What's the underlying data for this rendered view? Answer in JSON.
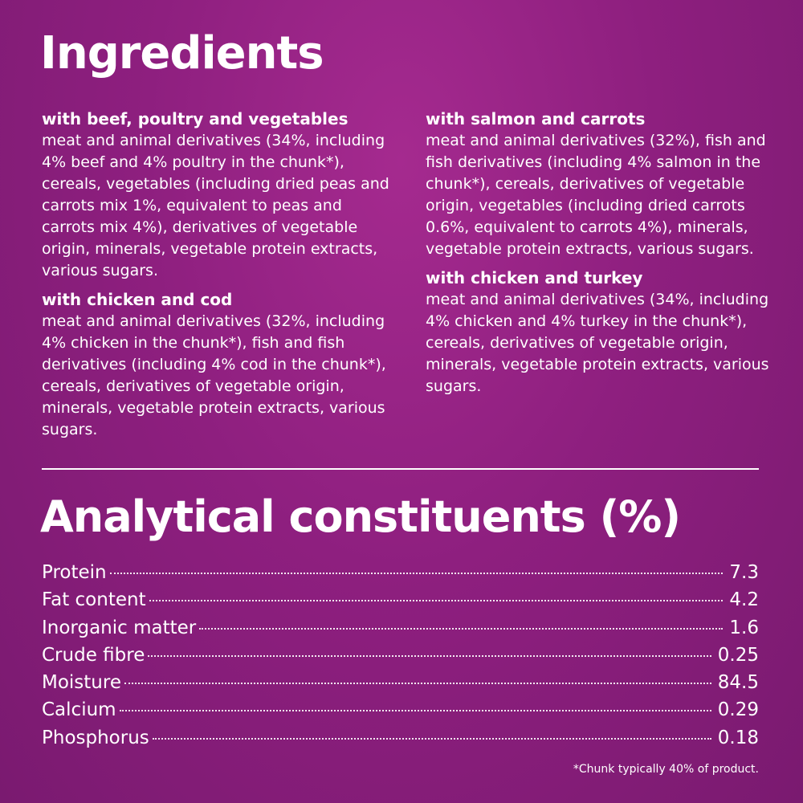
{
  "ingredients": {
    "title": "Ingredients",
    "recipes": [
      {
        "heading": "with beef, poultry and vegetables",
        "text": "meat and animal derivatives (34%, including 4% beef and 4% poultry in the chunk*), cereals, vegetables (including dried peas and carrots mix 1%, equivalent to peas and carrots mix 4%), derivatives of vegetable origin, minerals, vegetable protein extracts, various sugars."
      },
      {
        "heading": "with chicken and cod",
        "text": "meat and animal derivatives (32%, including 4% chicken in the chunk*), fish and fish derivatives (including 4% cod in the chunk*), cereals, derivatives of vegetable origin, minerals, vegetable protein extracts, various sugars."
      },
      {
        "heading": "with salmon and carrots",
        "text": "meat and animal derivatives (32%), fish and fish derivatives (including 4% salmon in the chunk*), cereals, derivatives of vegetable origin, vegetables (including dried carrots 0.6%, equivalent to carrots 4%), minerals, vegetable protein extracts, various sugars."
      },
      {
        "heading": "with chicken and turkey",
        "text": "meat and animal derivatives (34%, including 4% chicken and 4% turkey in the chunk*), cereals, derivatives of vegetable origin, minerals, vegetable protein extracts, various sugars."
      }
    ]
  },
  "analytical": {
    "title": "Analytical constituents (%)",
    "items": [
      {
        "name": "Protein",
        "value": "7.3"
      },
      {
        "name": "Fat content",
        "value": "4.2"
      },
      {
        "name": "Inorganic matter",
        "value": "1.6"
      },
      {
        "name": "Crude fibre",
        "value": "0.25"
      },
      {
        "name": "Moisture",
        "value": "84.5"
      },
      {
        "name": "Calcium",
        "value": "0.29"
      },
      {
        "name": "Phosphorus",
        "value": "0.18"
      }
    ]
  },
  "footnote": "*Chunk typically 40% of product.",
  "colors": {
    "background": "#8e1f7f",
    "text": "#ffffff"
  }
}
